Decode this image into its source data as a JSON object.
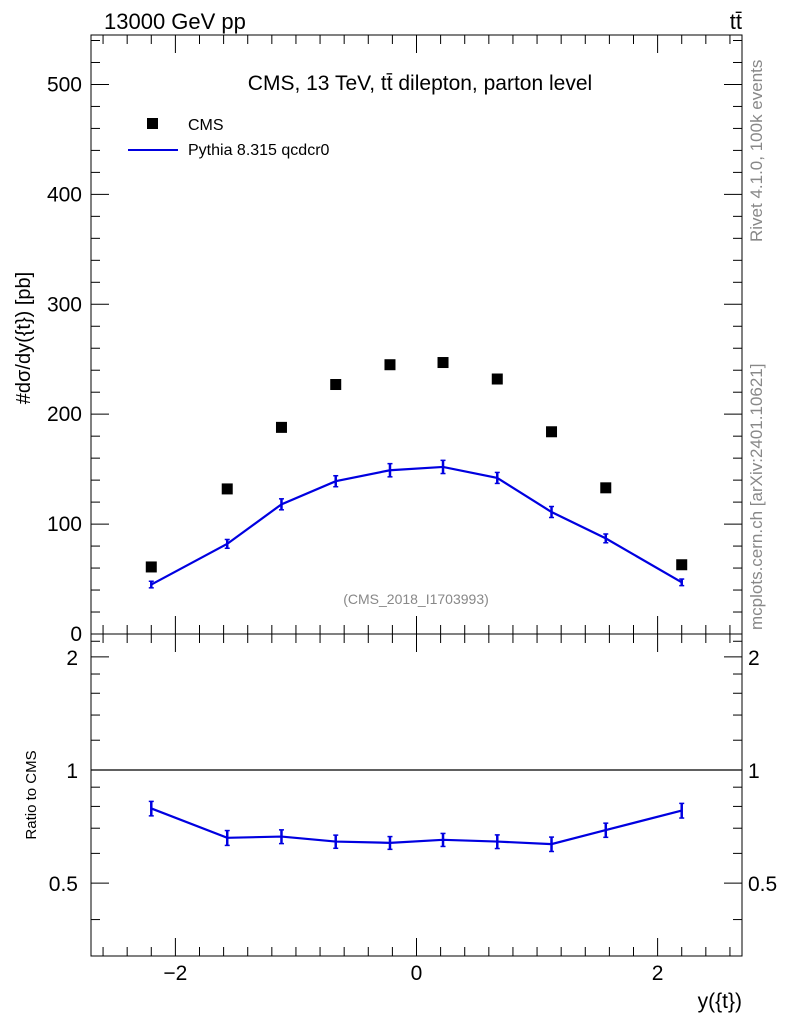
{
  "header": {
    "energy_label": "13000 GeV pp",
    "process_label": "tt̄",
    "rivet_label": "Rivet 4.1.0,  100k events",
    "mcplots_label": "mcplots.cern.ch [arXiv:2401.10621]",
    "analysis_id": "(CMS_2018_I1703993)"
  },
  "chart_data": [
    {
      "type": "scatter",
      "title": "CMS, 13 TeV, tt̄ dilepton, parton level",
      "ylabel": "#dσ/dy({t}) [pb]",
      "xlabel": "",
      "xlim": [
        -2.7,
        2.7
      ],
      "ylim": [
        0,
        545
      ],
      "x_ticks": [
        -2,
        0,
        2
      ],
      "y_ticks": [
        0,
        100,
        200,
        300,
        400,
        500
      ],
      "legend_position": "top-left",
      "colors": {
        "data": "#000000",
        "mc": "#0000e0"
      },
      "series": [
        {
          "name": "CMS",
          "style": "markers",
          "x": [
            -2.2,
            -1.57,
            -1.12,
            -0.67,
            -0.22,
            0.22,
            0.67,
            1.12,
            1.57,
            2.2
          ],
          "values": [
            61,
            132,
            188,
            227,
            245,
            247,
            232,
            184,
            133,
            63
          ]
        },
        {
          "name": "Pythia 8.315 qcdcr0",
          "style": "line",
          "x": [
            -2.2,
            -1.57,
            -1.12,
            -0.67,
            -0.22,
            0.22,
            0.67,
            1.12,
            1.57,
            2.2
          ],
          "values": [
            45,
            82,
            118,
            139,
            149,
            152,
            142,
            111,
            87,
            47
          ],
          "errors": [
            3,
            4,
            5,
            5,
            6,
            6,
            5,
            5,
            4,
            3
          ]
        }
      ]
    },
    {
      "type": "line",
      "title": "",
      "ylabel": "Ratio to CMS",
      "xlabel": "y({t})",
      "xlim": [
        -2.7,
        2.7
      ],
      "ylim": [
        0.32,
        2.3
      ],
      "x_ticks": [
        -2,
        0,
        2
      ],
      "y_ticks": [
        0.5,
        1,
        2
      ],
      "reference_line": 1,
      "series": [
        {
          "name": "Pythia 8.315 qcdcr0 / CMS",
          "x": [
            -2.2,
            -1.57,
            -1.12,
            -0.67,
            -0.22,
            0.22,
            0.67,
            1.12,
            1.57,
            2.2
          ],
          "values": [
            0.79,
            0.66,
            0.665,
            0.645,
            0.64,
            0.652,
            0.645,
            0.635,
            0.692,
            0.78
          ],
          "errors": [
            0.035,
            0.03,
            0.028,
            0.026,
            0.025,
            0.026,
            0.027,
            0.028,
            0.03,
            0.035
          ]
        }
      ]
    }
  ]
}
